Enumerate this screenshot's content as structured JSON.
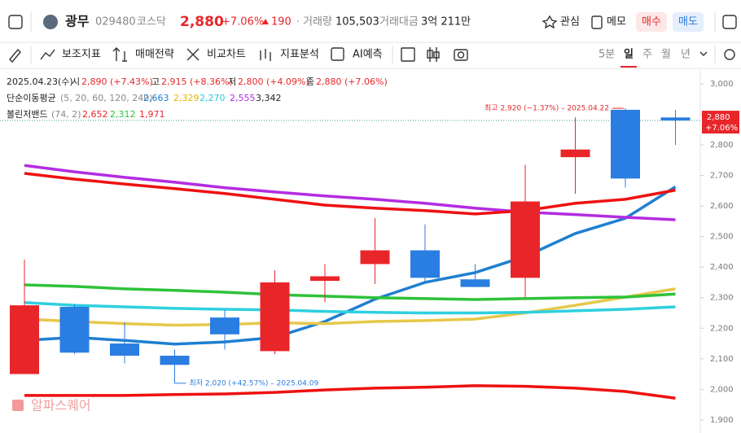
{
  "header": {
    "name": "광무",
    "code": "029480",
    "market": "코스닥",
    "price": "2,880",
    "change_pct": "+7.06%",
    "change": "190",
    "volume_label": "거래량",
    "volume": "105,503",
    "amount_label": "거래대금",
    "amount": "3억 211만",
    "watch": "관심",
    "memo": "메모",
    "buy": "매수",
    "sell": "매도"
  },
  "toolbar": {
    "tools": [
      "보조지표",
      "매매전략",
      "비교차트",
      "지표분석",
      "AI예측"
    ],
    "periods": [
      "5분",
      "일",
      "주",
      "월",
      "년"
    ]
  },
  "info": {
    "date": "2025.04.23(수)",
    "open_label": "시",
    "open": "2,890 (+7.43%)",
    "high_label": "고",
    "high": "2,915 (+8.36%)",
    "low_label": "저",
    "low": "2,800 (+4.09%)",
    "close_label": "종",
    "close": "2,880 (+7.06%)",
    "ma_label": "단순이동평균",
    "ma_params": "(5, 20, 60, 120, 240)",
    "ma_values": [
      "2,663",
      "2,329",
      "2,270",
      "2,555",
      "3,342"
    ],
    "bb_label": "볼린저밴드",
    "bb_params": "(74, 2)",
    "bb_values": [
      "2,652",
      "2,312",
      "1,971"
    ]
  },
  "watermark": "알파스퀘어",
  "chart_data": {
    "type": "candlestick",
    "open": [
      2050,
      2270,
      2150,
      2110,
      2235,
      2125,
      2355,
      2410,
      2455,
      2360,
      2365,
      2760,
      2915,
      2890
    ],
    "high": [
      2425,
      2280,
      2220,
      2130,
      2260,
      2390,
      2410,
      2560,
      2540,
      2410,
      2735,
      2890,
      2920,
      2915
    ],
    "low": [
      2050,
      2115,
      2085,
      2020,
      2130,
      2115,
      2285,
      2345,
      2345,
      2335,
      2300,
      2640,
      2660,
      2800
    ],
    "close": [
      2275,
      2120,
      2110,
      2080,
      2180,
      2350,
      2370,
      2455,
      2365,
      2335,
      2615,
      2785,
      2690,
      2880
    ],
    "up_color": "#e8262a",
    "down_color": "#2a7de1",
    "series": [
      {
        "color": "#1f7fd0",
        "values": [
          2160,
          2170,
          2160,
          2148,
          2155,
          2170,
          2222,
          2295,
          2350,
          2382,
          2435,
          2510,
          2560,
          2663
        ]
      },
      {
        "color": "#e6c84a",
        "values": [
          2230,
          2222,
          2215,
          2210,
          2212,
          2218,
          2215,
          2222,
          2225,
          2230,
          2250,
          2275,
          2302,
          2329
        ]
      },
      {
        "color": "#2fd0e0",
        "values": [
          2284,
          2275,
          2270,
          2265,
          2262,
          2260,
          2255,
          2252,
          2250,
          2250,
          2252,
          2257,
          2262,
          2270
        ]
      },
      {
        "color": "#b32ce0",
        "values": [
          2733,
          2712,
          2694,
          2678,
          2660,
          2646,
          2633,
          2622,
          2609,
          2593,
          2580,
          2572,
          2563,
          2555
        ]
      },
      {
        "color": "#ee1111",
        "values": [
          2707,
          2688,
          2672,
          2657,
          2641,
          2622,
          2603,
          2593,
          2585,
          2574,
          2585,
          2609,
          2622,
          2652
        ]
      },
      {
        "color": "#2fc23a",
        "values": [
          2342,
          2337,
          2329,
          2324,
          2318,
          2310,
          2305,
          2300,
          2297,
          2294,
          2297,
          2300,
          2302,
          2312
        ]
      },
      {
        "color": "#ee1111",
        "values": [
          1980,
          1980,
          1980,
          1983,
          1985,
          1990,
          1998,
          2004,
          2007,
          2012,
          2010,
          2004,
          1993,
          1971
        ]
      }
    ],
    "ylim": [
      1857,
      3048
    ],
    "yticks": [
      {
        "value": 3000,
        "label": "3,000"
      },
      {
        "value": 2900,
        "label": "2,900"
      },
      {
        "value": 2800,
        "label": "2,800"
      },
      {
        "value": 2700,
        "label": "2,700"
      },
      {
        "value": 2600,
        "label": "2,600"
      },
      {
        "value": 2500,
        "label": "2,500"
      },
      {
        "value": 2400,
        "label": "2,400"
      },
      {
        "value": 2300,
        "label": "2,300"
      },
      {
        "value": 2200,
        "label": "2,200"
      },
      {
        "value": 2100,
        "label": "2,100"
      },
      {
        "value": 2000,
        "label": "2,000"
      },
      {
        "value": 1900,
        "label": "1,900"
      }
    ],
    "current": {
      "value": 2880,
      "label": "2,880",
      "change": "+7.06%"
    },
    "annotations": [
      {
        "text": "최고 2,920 (−1.37%) – 2025.04.22",
        "value": 2920
      },
      {
        "text": "최저 2,020 (+42.57%) – 2025.04.09",
        "value": 2020
      }
    ]
  }
}
